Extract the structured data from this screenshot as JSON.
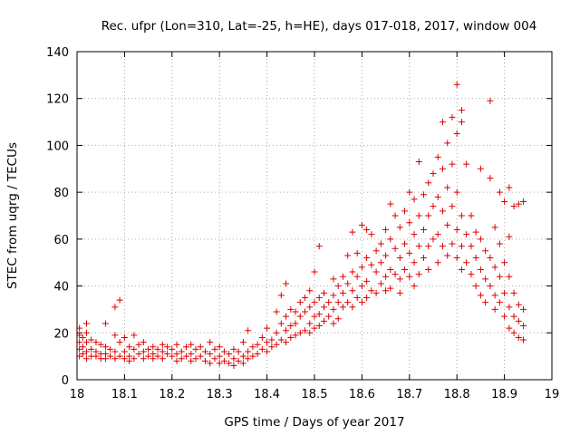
{
  "chart_data": {
    "type": "scatter",
    "title": "Rec. ufpr (Lon=310, Lat=-25, h=HE), days 017-018, 2017, window 004",
    "xlabel": "GPS time / Days of year 2017",
    "ylabel": "STEC from uqrg / TECUs",
    "xlim": [
      18,
      19
    ],
    "ylim": [
      0,
      140
    ],
    "x_ticks": [
      "18",
      "18.1",
      "18.2",
      "18.3",
      "18.4",
      "18.5",
      "18.6",
      "18.7",
      "18.8",
      "18.9",
      "19"
    ],
    "y_ticks": [
      "0",
      "20",
      "40",
      "60",
      "80",
      "100",
      "120",
      "140"
    ],
    "grid": "dotted",
    "marker": "plus",
    "color": "#dd0000",
    "series": [
      {
        "points": [
          [
            18.005,
            22
          ],
          [
            18.005,
            19
          ],
          [
            18.005,
            16
          ],
          [
            18.005,
            13
          ],
          [
            18.005,
            10
          ],
          [
            18.012,
            18
          ],
          [
            18.012,
            14
          ],
          [
            18.012,
            11
          ],
          [
            18.02,
            24
          ],
          [
            18.02,
            20
          ],
          [
            18.02,
            16
          ],
          [
            18.02,
            12
          ],
          [
            18.02,
            9
          ],
          [
            18.03,
            17
          ],
          [
            18.03,
            13
          ],
          [
            18.03,
            10
          ],
          [
            18.04,
            16
          ],
          [
            18.04,
            12
          ],
          [
            18.04,
            10
          ],
          [
            18.05,
            15
          ],
          [
            18.05,
            11
          ],
          [
            18.05,
            9
          ],
          [
            18.06,
            24
          ],
          [
            18.06,
            14
          ],
          [
            18.06,
            11
          ],
          [
            18.06,
            9
          ],
          [
            18.07,
            13
          ],
          [
            18.07,
            10
          ],
          [
            18.08,
            31
          ],
          [
            18.08,
            19
          ],
          [
            18.08,
            12
          ],
          [
            18.08,
            9
          ],
          [
            18.09,
            34
          ],
          [
            18.09,
            16
          ],
          [
            18.09,
            10
          ],
          [
            18.1,
            18
          ],
          [
            18.1,
            12
          ],
          [
            18.1,
            9
          ],
          [
            18.11,
            14
          ],
          [
            18.11,
            10
          ],
          [
            18.11,
            8
          ],
          [
            18.12,
            19
          ],
          [
            18.12,
            13
          ],
          [
            18.12,
            9
          ],
          [
            18.13,
            15
          ],
          [
            18.13,
            11
          ],
          [
            18.14,
            16
          ],
          [
            18.14,
            12
          ],
          [
            18.14,
            9
          ],
          [
            18.15,
            13
          ],
          [
            18.15,
            10
          ],
          [
            18.16,
            14
          ],
          [
            18.16,
            11
          ],
          [
            18.16,
            9
          ],
          [
            18.17,
            13
          ],
          [
            18.17,
            10
          ],
          [
            18.18,
            15
          ],
          [
            18.18,
            12
          ],
          [
            18.18,
            9
          ],
          [
            18.19,
            14
          ],
          [
            18.19,
            11
          ],
          [
            18.2,
            13
          ],
          [
            18.2,
            10
          ],
          [
            18.21,
            15
          ],
          [
            18.21,
            11
          ],
          [
            18.21,
            8
          ],
          [
            18.22,
            12
          ],
          [
            18.22,
            9
          ],
          [
            18.23,
            14
          ],
          [
            18.23,
            10
          ],
          [
            18.24,
            15
          ],
          [
            18.24,
            11
          ],
          [
            18.24,
            8
          ],
          [
            18.25,
            13
          ],
          [
            18.25,
            9
          ],
          [
            18.26,
            14
          ],
          [
            18.26,
            10
          ],
          [
            18.27,
            12
          ],
          [
            18.27,
            8
          ],
          [
            18.28,
            16
          ],
          [
            18.28,
            11
          ],
          [
            18.28,
            7
          ],
          [
            18.29,
            13
          ],
          [
            18.29,
            9
          ],
          [
            18.3,
            14
          ],
          [
            18.3,
            10
          ],
          [
            18.3,
            7
          ],
          [
            18.31,
            12
          ],
          [
            18.31,
            8
          ],
          [
            18.32,
            11
          ],
          [
            18.32,
            7
          ],
          [
            18.33,
            13
          ],
          [
            18.33,
            9
          ],
          [
            18.33,
            6
          ],
          [
            18.34,
            12
          ],
          [
            18.34,
            8
          ],
          [
            18.35,
            16
          ],
          [
            18.35,
            10
          ],
          [
            18.35,
            7
          ],
          [
            18.36,
            21
          ],
          [
            18.36,
            12
          ],
          [
            18.36,
            9
          ],
          [
            18.37,
            14
          ],
          [
            18.37,
            10
          ],
          [
            18.38,
            15
          ],
          [
            18.38,
            11
          ],
          [
            18.39,
            18
          ],
          [
            18.39,
            13
          ],
          [
            18.4,
            22
          ],
          [
            18.4,
            16
          ],
          [
            18.4,
            12
          ],
          [
            18.41,
            17
          ],
          [
            18.41,
            14
          ],
          [
            18.42,
            29
          ],
          [
            18.42,
            20
          ],
          [
            18.42,
            15
          ],
          [
            18.43,
            36
          ],
          [
            18.43,
            24
          ],
          [
            18.43,
            17
          ],
          [
            18.44,
            41
          ],
          [
            18.44,
            27
          ],
          [
            18.44,
            21
          ],
          [
            18.44,
            16
          ],
          [
            18.45,
            30
          ],
          [
            18.45,
            23
          ],
          [
            18.45,
            18
          ],
          [
            18.46,
            29
          ],
          [
            18.46,
            24
          ],
          [
            18.46,
            19
          ],
          [
            18.47,
            33
          ],
          [
            18.47,
            27
          ],
          [
            18.47,
            20
          ],
          [
            18.48,
            35
          ],
          [
            18.48,
            29
          ],
          [
            18.48,
            21
          ],
          [
            18.49,
            38
          ],
          [
            18.49,
            31
          ],
          [
            18.49,
            24
          ],
          [
            18.49,
            20
          ],
          [
            18.5,
            46
          ],
          [
            18.5,
            33
          ],
          [
            18.5,
            27
          ],
          [
            18.5,
            22
          ],
          [
            18.51,
            57
          ],
          [
            18.51,
            35
          ],
          [
            18.51,
            28
          ],
          [
            18.51,
            23
          ],
          [
            18.52,
            37
          ],
          [
            18.52,
            31
          ],
          [
            18.52,
            25
          ],
          [
            18.53,
            33
          ],
          [
            18.53,
            27
          ],
          [
            18.54,
            43
          ],
          [
            18.54,
            36
          ],
          [
            18.54,
            30
          ],
          [
            18.54,
            24
          ],
          [
            18.55,
            40
          ],
          [
            18.55,
            33
          ],
          [
            18.55,
            26
          ],
          [
            18.56,
            44
          ],
          [
            18.56,
            37
          ],
          [
            18.56,
            31
          ],
          [
            18.57,
            53
          ],
          [
            18.57,
            41
          ],
          [
            18.57,
            33
          ],
          [
            18.58,
            63
          ],
          [
            18.58,
            46
          ],
          [
            18.58,
            38
          ],
          [
            18.58,
            31
          ],
          [
            18.59,
            54
          ],
          [
            18.59,
            44
          ],
          [
            18.59,
            35
          ],
          [
            18.6,
            66
          ],
          [
            18.6,
            48
          ],
          [
            18.6,
            40
          ],
          [
            18.6,
            33
          ],
          [
            18.61,
            64
          ],
          [
            18.61,
            52
          ],
          [
            18.61,
            42
          ],
          [
            18.61,
            35
          ],
          [
            18.62,
            62
          ],
          [
            18.62,
            49
          ],
          [
            18.62,
            38
          ],
          [
            18.63,
            55
          ],
          [
            18.63,
            46
          ],
          [
            18.63,
            37
          ],
          [
            18.64,
            58
          ],
          [
            18.64,
            50
          ],
          [
            18.64,
            41
          ],
          [
            18.65,
            64
          ],
          [
            18.65,
            53
          ],
          [
            18.65,
            44
          ],
          [
            18.65,
            38
          ],
          [
            18.66,
            75
          ],
          [
            18.66,
            60
          ],
          [
            18.66,
            47
          ],
          [
            18.66,
            39
          ],
          [
            18.67,
            70
          ],
          [
            18.67,
            56
          ],
          [
            18.67,
            45
          ],
          [
            18.68,
            65
          ],
          [
            18.68,
            52
          ],
          [
            18.68,
            43
          ],
          [
            18.68,
            37
          ],
          [
            18.69,
            72
          ],
          [
            18.69,
            58
          ],
          [
            18.69,
            47
          ],
          [
            18.7,
            80
          ],
          [
            18.7,
            67
          ],
          [
            18.7,
            54
          ],
          [
            18.7,
            44
          ],
          [
            18.71,
            77
          ],
          [
            18.71,
            62
          ],
          [
            18.71,
            50
          ],
          [
            18.71,
            40
          ],
          [
            18.72,
            93
          ],
          [
            18.72,
            70
          ],
          [
            18.72,
            57
          ],
          [
            18.72,
            45
          ],
          [
            18.73,
            79
          ],
          [
            18.73,
            64
          ],
          [
            18.73,
            52
          ],
          [
            18.74,
            84
          ],
          [
            18.74,
            70
          ],
          [
            18.74,
            57
          ],
          [
            18.74,
            47
          ],
          [
            18.75,
            88
          ],
          [
            18.75,
            74
          ],
          [
            18.75,
            60
          ],
          [
            18.76,
            95
          ],
          [
            18.76,
            78
          ],
          [
            18.76,
            62
          ],
          [
            18.76,
            50
          ],
          [
            18.77,
            110
          ],
          [
            18.77,
            90
          ],
          [
            18.77,
            72
          ],
          [
            18.77,
            57
          ],
          [
            18.78,
            101
          ],
          [
            18.78,
            82
          ],
          [
            18.78,
            66
          ],
          [
            18.78,
            53
          ],
          [
            18.79,
            112
          ],
          [
            18.79,
            92
          ],
          [
            18.79,
            74
          ],
          [
            18.79,
            58
          ],
          [
            18.8,
            126
          ],
          [
            18.8,
            105
          ],
          [
            18.8,
            80
          ],
          [
            18.8,
            64
          ],
          [
            18.8,
            52
          ],
          [
            18.81,
            115
          ],
          [
            18.81,
            110
          ],
          [
            18.81,
            70
          ],
          [
            18.81,
            57
          ],
          [
            18.81,
            47
          ],
          [
            18.82,
            92
          ],
          [
            18.82,
            62
          ],
          [
            18.82,
            50
          ],
          [
            18.83,
            70
          ],
          [
            18.83,
            57
          ],
          [
            18.83,
            45
          ],
          [
            18.84,
            63
          ],
          [
            18.84,
            52
          ],
          [
            18.84,
            40
          ],
          [
            18.85,
            90
          ],
          [
            18.85,
            60
          ],
          [
            18.85,
            47
          ],
          [
            18.85,
            36
          ],
          [
            18.86,
            55
          ],
          [
            18.86,
            43
          ],
          [
            18.86,
            33
          ],
          [
            18.87,
            119
          ],
          [
            18.87,
            86
          ],
          [
            18.87,
            52
          ],
          [
            18.87,
            40
          ],
          [
            18.88,
            65
          ],
          [
            18.88,
            48
          ],
          [
            18.88,
            36
          ],
          [
            18.88,
            30
          ],
          [
            18.89,
            80
          ],
          [
            18.89,
            58
          ],
          [
            18.89,
            44
          ],
          [
            18.89,
            33
          ],
          [
            18.9,
            76
          ],
          [
            18.9,
            50
          ],
          [
            18.9,
            37
          ],
          [
            18.9,
            27
          ],
          [
            18.91,
            82
          ],
          [
            18.91,
            61
          ],
          [
            18.91,
            44
          ],
          [
            18.91,
            31
          ],
          [
            18.91,
            22
          ],
          [
            18.92,
            74
          ],
          [
            18.92,
            37
          ],
          [
            18.92,
            27
          ],
          [
            18.92,
            20
          ],
          [
            18.93,
            75
          ],
          [
            18.93,
            32
          ],
          [
            18.93,
            25
          ],
          [
            18.93,
            18
          ],
          [
            18.94,
            76
          ],
          [
            18.94,
            30
          ],
          [
            18.94,
            23
          ],
          [
            18.94,
            17
          ]
        ]
      }
    ]
  }
}
